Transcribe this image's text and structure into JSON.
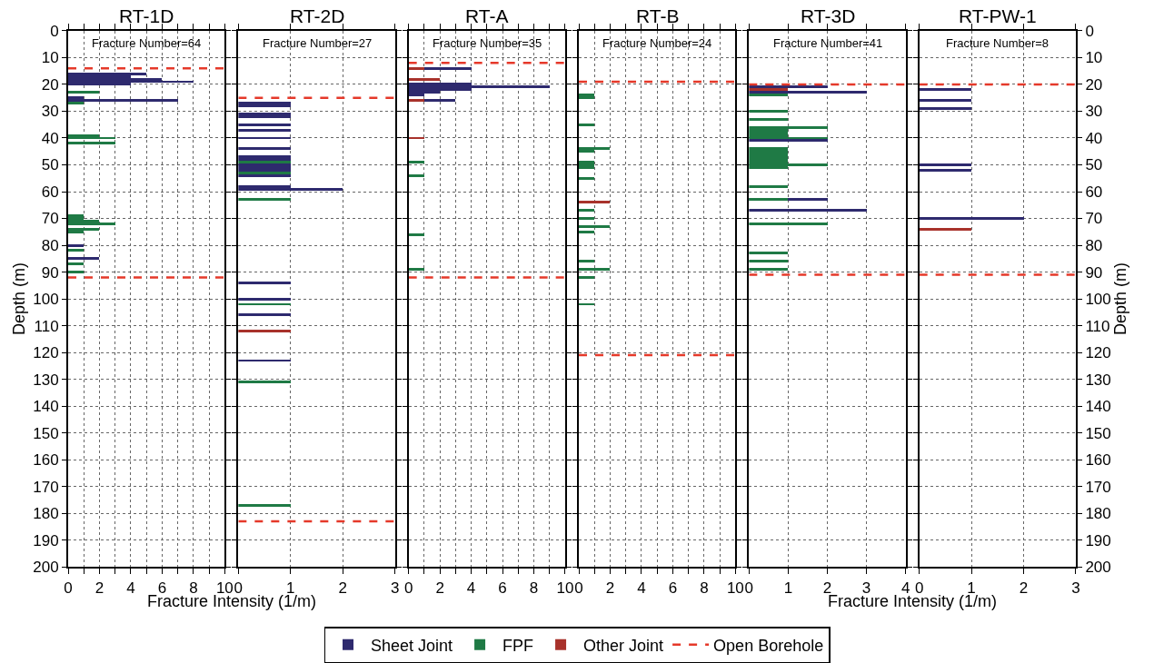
{
  "chart_data": [
    {
      "type": "bar",
      "orientation": "horizontal",
      "title": "RT-1D",
      "annotations": [
        "Fracture Number=64"
      ],
      "xlabel": "Fracture Intensity (1/m)",
      "ylabel": "Depth (m)",
      "legend": "bottom",
      "grid": true,
      "series": [
        {
          "name": "Sheet Joint",
          "color": "#2e2a6e",
          "x": [
            16,
            17,
            18,
            19,
            20,
            25,
            26,
            80,
            85
          ],
          "values": [
            5,
            4,
            6,
            8,
            4,
            1,
            7,
            1,
            2
          ]
        },
        {
          "name": "FPF",
          "color": "#1f7a45",
          "x": [
            23,
            27,
            39,
            40,
            42,
            69,
            70,
            71,
            72,
            74,
            75,
            82,
            87,
            90
          ],
          "values": [
            2,
            1,
            2,
            3,
            3,
            1,
            1,
            2,
            3,
            2,
            1,
            1,
            1,
            1
          ]
        }
      ],
      "ref_lines": [
        {
          "axis": "y",
          "value": 14,
          "label": "Open Borehole",
          "color": "#e5392a",
          "line_style": "dashed"
        },
        {
          "axis": "y",
          "value": 92,
          "color": "#e5392a",
          "line_style": "dashed"
        }
      ],
      "xlim": [
        0,
        10
      ],
      "xticks": [
        0,
        {
          "value": 1,
          "label": null
        },
        2,
        {
          "value": 3,
          "label": null
        },
        4,
        {
          "value": 5,
          "label": null
        },
        6,
        {
          "value": 7,
          "label": null
        },
        8,
        {
          "value": 9,
          "label": null
        },
        10
      ],
      "ylim": [
        200,
        0
      ],
      "yticks": [
        0,
        10,
        20,
        30,
        40,
        50,
        60,
        70,
        80,
        90,
        100,
        110,
        120,
        130,
        140,
        150,
        160,
        170,
        180,
        190,
        200
      ]
    },
    {
      "type": "bar",
      "orientation": "horizontal",
      "title": "RT-2D",
      "annotations": [
        "Fracture Number=27"
      ],
      "legend": "bottom",
      "grid": true,
      "tick_labels": "x",
      "series": [
        {
          "name": "Sheet Joint",
          "color": "#2e2a6e",
          "x": [
            27,
            28,
            31,
            32,
            35,
            37,
            40,
            44,
            47,
            48,
            50,
            51,
            52,
            54,
            58,
            59,
            94,
            100,
            106,
            123
          ],
          "values": [
            1,
            1,
            1,
            1,
            1,
            1,
            1,
            1,
            1,
            1,
            1,
            1,
            1,
            1,
            1,
            2,
            1,
            1,
            1,
            1
          ]
        },
        {
          "name": "FPF",
          "color": "#1f7a45",
          "x": [
            49,
            53,
            63,
            102,
            131,
            177
          ],
          "values": [
            1,
            1,
            1,
            1,
            1,
            1
          ]
        },
        {
          "name": "Other Joint",
          "color": "#a8322b",
          "x": [
            112
          ],
          "values": [
            1
          ]
        }
      ],
      "ref_lines": [
        {
          "axis": "y",
          "value": 25,
          "color": "#e5392a",
          "line_style": "dashed"
        },
        {
          "axis": "y",
          "value": 183,
          "color": "#e5392a",
          "line_style": "dashed"
        }
      ],
      "xlim": [
        0,
        3
      ],
      "xticks": [
        0,
        1,
        2,
        3
      ],
      "ylim": [
        200,
        0
      ],
      "yticks": [
        0,
        10,
        20,
        30,
        40,
        50,
        60,
        70,
        80,
        90,
        100,
        110,
        120,
        130,
        140,
        150,
        160,
        170,
        180,
        190,
        200
      ]
    },
    {
      "type": "bar",
      "orientation": "horizontal",
      "title": "RT-A",
      "annotations": [
        "Fracture Number=35"
      ],
      "legend": "bottom",
      "grid": true,
      "tick_labels": "x",
      "series": [
        {
          "name": "Sheet Joint",
          "color": "#2e2a6e",
          "x": [
            14,
            20,
            21,
            22,
            23,
            24,
            26
          ],
          "values": [
            4,
            4,
            9,
            4,
            2,
            1,
            3
          ]
        },
        {
          "name": "FPF",
          "color": "#1f7a45",
          "x": [
            49,
            54,
            76,
            89
          ],
          "values": [
            1,
            1,
            1,
            1
          ]
        },
        {
          "name": "Other Joint",
          "color": "#a8322b",
          "x": [
            14,
            18,
            26,
            40
          ],
          "values": [
            1,
            2,
            1,
            1
          ]
        }
      ],
      "ref_lines": [
        {
          "axis": "y",
          "value": 12,
          "color": "#e5392a",
          "line_style": "dashed"
        },
        {
          "axis": "y",
          "value": 92,
          "color": "#e5392a",
          "line_style": "dashed"
        }
      ],
      "xlim": [
        0,
        10
      ],
      "xticks": [
        0,
        {
          "value": 1,
          "label": null
        },
        2,
        {
          "value": 3,
          "label": null
        },
        4,
        {
          "value": 5,
          "label": null
        },
        6,
        {
          "value": 7,
          "label": null
        },
        8,
        {
          "value": 9,
          "label": null
        },
        10
      ],
      "ylim": [
        200,
        0
      ],
      "yticks": [
        0,
        10,
        20,
        30,
        40,
        50,
        60,
        70,
        80,
        90,
        100,
        110,
        120,
        130,
        140,
        150,
        160,
        170,
        180,
        190,
        200
      ]
    },
    {
      "type": "bar",
      "orientation": "horizontal",
      "title": "RT-B",
      "annotations": [
        "Fracture Number=24"
      ],
      "legend": "bottom",
      "grid": true,
      "tick_labels": "x",
      "series": [
        {
          "name": "FPF",
          "color": "#1f7a45",
          "x": [
            24,
            25,
            35,
            44,
            45,
            49,
            50,
            51,
            55,
            67,
            70,
            73,
            75,
            86,
            89,
            92,
            102
          ],
          "values": [
            1,
            1,
            1,
            2,
            1,
            1,
            1,
            1,
            1,
            1,
            1,
            2,
            1,
            1,
            2,
            1,
            1
          ]
        },
        {
          "name": "Other Joint",
          "color": "#a8322b",
          "x": [
            64
          ],
          "values": [
            2
          ]
        }
      ],
      "ref_lines": [
        {
          "axis": "y",
          "value": 19,
          "color": "#e5392a",
          "line_style": "dashed"
        },
        {
          "axis": "y",
          "value": 121,
          "color": "#e5392a",
          "line_style": "dashed"
        }
      ],
      "xlim": [
        0,
        10
      ],
      "xticks": [
        0,
        {
          "value": 1,
          "label": null
        },
        2,
        {
          "value": 3,
          "label": null
        },
        4,
        {
          "value": 5,
          "label": null
        },
        6,
        {
          "value": 7,
          "label": null
        },
        8,
        {
          "value": 9,
          "label": null
        },
        10
      ],
      "ylim": [
        200,
        0
      ],
      "yticks": [
        0,
        10,
        20,
        30,
        40,
        50,
        60,
        70,
        80,
        90,
        100,
        110,
        120,
        130,
        140,
        150,
        160,
        170,
        180,
        190,
        200
      ]
    },
    {
      "type": "bar",
      "orientation": "horizontal",
      "title": "RT-3D",
      "annotations": [
        "Fracture Number=41"
      ],
      "xlabel": "Fracture Intensity (1/m)",
      "legend": "bottom",
      "grid": true,
      "tick_labels": "x",
      "series": [
        {
          "name": "Sheet Joint",
          "color": "#2e2a6e",
          "x": [
            21,
            23,
            41,
            63,
            67
          ],
          "values": [
            2,
            3,
            2,
            2,
            3
          ]
        },
        {
          "name": "FPF",
          "color": "#1f7a45",
          "x": [
            24,
            30,
            33,
            36,
            37,
            38,
            39,
            40,
            44,
            45,
            46,
            47,
            48,
            49,
            50,
            51,
            58,
            63,
            72,
            83,
            86,
            89
          ],
          "values": [
            1,
            1,
            1,
            2,
            1,
            1,
            1,
            2,
            1,
            1,
            1,
            1,
            1,
            1,
            2,
            1,
            1,
            1,
            2,
            1,
            1,
            1
          ]
        },
        {
          "name": "Other Joint",
          "color": "#a8322b",
          "x": [
            22
          ],
          "values": [
            1
          ]
        }
      ],
      "ref_lines": [
        {
          "axis": "y",
          "value": 20,
          "color": "#e5392a",
          "line_style": "dashed"
        },
        {
          "axis": "y",
          "value": 91,
          "color": "#e5392a",
          "line_style": "dashed"
        }
      ],
      "xlim": [
        0,
        4
      ],
      "xticks": [
        0,
        1,
        2,
        3,
        4
      ],
      "ylim": [
        200,
        0
      ],
      "yticks": [
        0,
        10,
        20,
        30,
        40,
        50,
        60,
        70,
        80,
        90,
        100,
        110,
        120,
        130,
        140,
        150,
        160,
        170,
        180,
        190,
        200
      ]
    },
    {
      "type": "bar",
      "orientation": "horizontal",
      "title": "RT-PW-1",
      "annotations": [
        "Fracture Number=8"
      ],
      "ylabel": "Depth (m)",
      "legend": "bottom",
      "grid": true,
      "series": [
        {
          "name": "Sheet Joint",
          "color": "#2e2a6e",
          "x": [
            22,
            26,
            29,
            50,
            52,
            70
          ],
          "values": [
            1,
            1,
            1,
            1,
            1,
            2
          ]
        },
        {
          "name": "Other Joint",
          "color": "#a8322b",
          "x": [
            74
          ],
          "values": [
            1
          ]
        }
      ],
      "ref_lines": [
        {
          "axis": "y",
          "value": 20,
          "color": "#e5392a",
          "line_style": "dashed"
        },
        {
          "axis": "y",
          "value": 91,
          "color": "#e5392a",
          "line_style": "dashed"
        }
      ],
      "xlim": [
        0,
        3
      ],
      "xticks": [
        0,
        1,
        2,
        3
      ],
      "ylim": [
        200,
        0
      ],
      "yticks": [
        0,
        10,
        20,
        30,
        40,
        50,
        60,
        70,
        80,
        90,
        100,
        110,
        120,
        130,
        140,
        150,
        160,
        170,
        180,
        190,
        200
      ]
    }
  ]
}
